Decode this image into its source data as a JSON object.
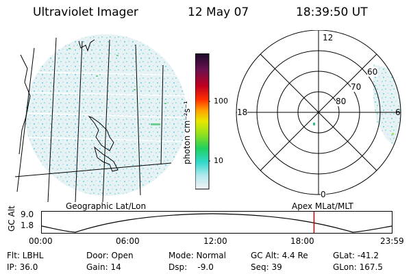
{
  "header": {
    "title": "Ultraviolet Imager",
    "date": "12 May 07",
    "time": "18:39:50 UT"
  },
  "colorbar": {
    "unit_label": "photon cm⁻²s⁻¹",
    "ticks": [
      "100",
      "10"
    ]
  },
  "left_map": {
    "caption": "Geographic Lat/Lon"
  },
  "polar_plot": {
    "caption": "Apex MLat/MLT",
    "labels": {
      "top": "12",
      "left": "18",
      "right": "6",
      "bottom": "0"
    },
    "ring_labels": [
      "60",
      "70",
      "80"
    ]
  },
  "timeline": {
    "ylabel": "GC Alt",
    "yticks": [
      "9.0",
      "1.8"
    ],
    "xticks": [
      "00:00",
      "06:00",
      "12:00",
      "18:00",
      "23:59"
    ],
    "marker_time": "18:39:50",
    "marker_color": "#cc0000"
  },
  "info": {
    "flt": "Flt: LBHL",
    "ip": "IP: 36.0",
    "door": "Door: Open",
    "gain": "Gain: 14",
    "mode": "Mode: Normal",
    "dsp": "Dsp:    -9.0",
    "gcalt": "GC Alt: 4.4 Re",
    "seq": "Seq: 39",
    "glat": "GLat: -41.2",
    "glon": "GLon: 167.5"
  }
}
